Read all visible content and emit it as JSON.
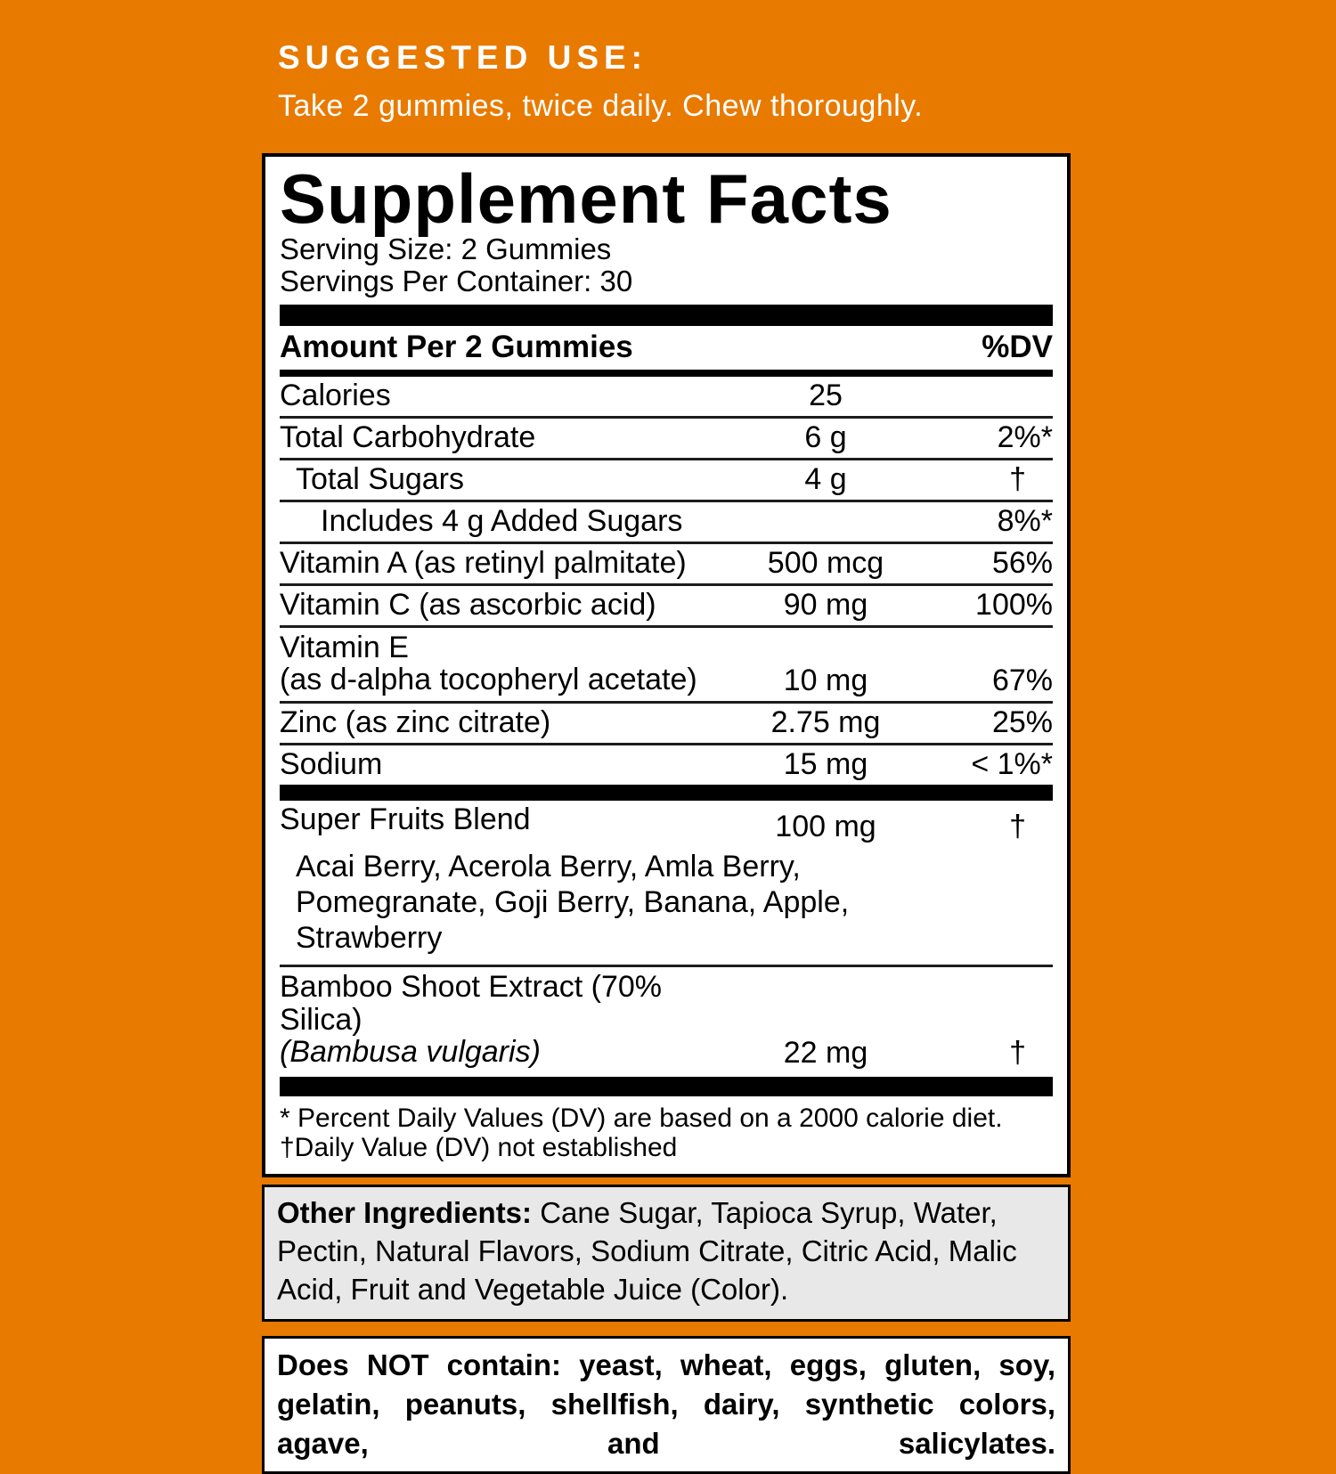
{
  "colors": {
    "background_orange": "#E87A00",
    "panel_bg": "#FFFFFF",
    "other_ingredients_bg": "#E8E8E8",
    "text": "#000000",
    "suggested_use_text": "#FFFFFF"
  },
  "suggested_use": {
    "heading": "SUGGESTED USE:",
    "text": "Take 2 gummies, twice daily. Chew thoroughly."
  },
  "panel": {
    "title": "Supplement Facts",
    "serving_size": "Serving Size: 2 Gummies",
    "servings_per_container": "Servings Per Container: 30",
    "header": {
      "amount_label": "Amount Per 2 Gummies",
      "dv_label": "%DV"
    },
    "rows": [
      {
        "name": "Calories",
        "amount": "25",
        "dv": ""
      },
      {
        "name": "Total Carbohydrate",
        "amount": "6 g",
        "dv": "2%*"
      },
      {
        "name": "Total Sugars",
        "amount": "4 g",
        "dv": "†"
      },
      {
        "name": "Includes 4 g Added Sugars",
        "amount": "",
        "dv": "8%*"
      },
      {
        "name": "Vitamin A (as retinyl palmitate)",
        "amount": "500 mcg",
        "dv": "56%"
      },
      {
        "name": "Vitamin C (as ascorbic acid)",
        "amount": "90 mg",
        "dv": "100%"
      },
      {
        "name_line1": "Vitamin E",
        "name_line2": "(as d-alpha tocopheryl acetate)",
        "amount": "10 mg",
        "dv": "67%"
      },
      {
        "name": "Zinc (as zinc citrate)",
        "amount": "2.75 mg",
        "dv": "25%"
      },
      {
        "name": "Sodium",
        "amount": "15 mg",
        "dv": "< 1%*"
      }
    ],
    "blend": {
      "name": "Super Fruits Blend",
      "amount": "100 mg",
      "dv": "†",
      "lines": [
        "Acai Berry, Acerola Berry, Amla Berry,",
        "Pomegranate, Goji Berry, Banana, Apple,",
        "Strawberry"
      ]
    },
    "bamboo": {
      "name_line1": "Bamboo Shoot Extract (70% Silica)",
      "name_line2": "(Bambusa vulgaris)",
      "amount": "22 mg",
      "dv": "†"
    },
    "footnotes": {
      "line1": "* Percent Daily Values (DV) are based on a 2000 calorie diet.",
      "line2": "†Daily Value (DV) not established"
    }
  },
  "other_ingredients": {
    "label": "Other Ingredients:",
    "text": "Cane Sugar, Tapioca Syrup, Water, Pectin, Natural Flavors, Sodium Citrate, Citric Acid, Malic Acid, Fruit and Vegetable Juice (Color)."
  },
  "does_not_contain": {
    "text": "Does NOT contain: yeast, wheat, eggs, gluten, soy, gelatin, peanuts, shellfish, dairy, synthetic colors, agave, and salicylates."
  }
}
